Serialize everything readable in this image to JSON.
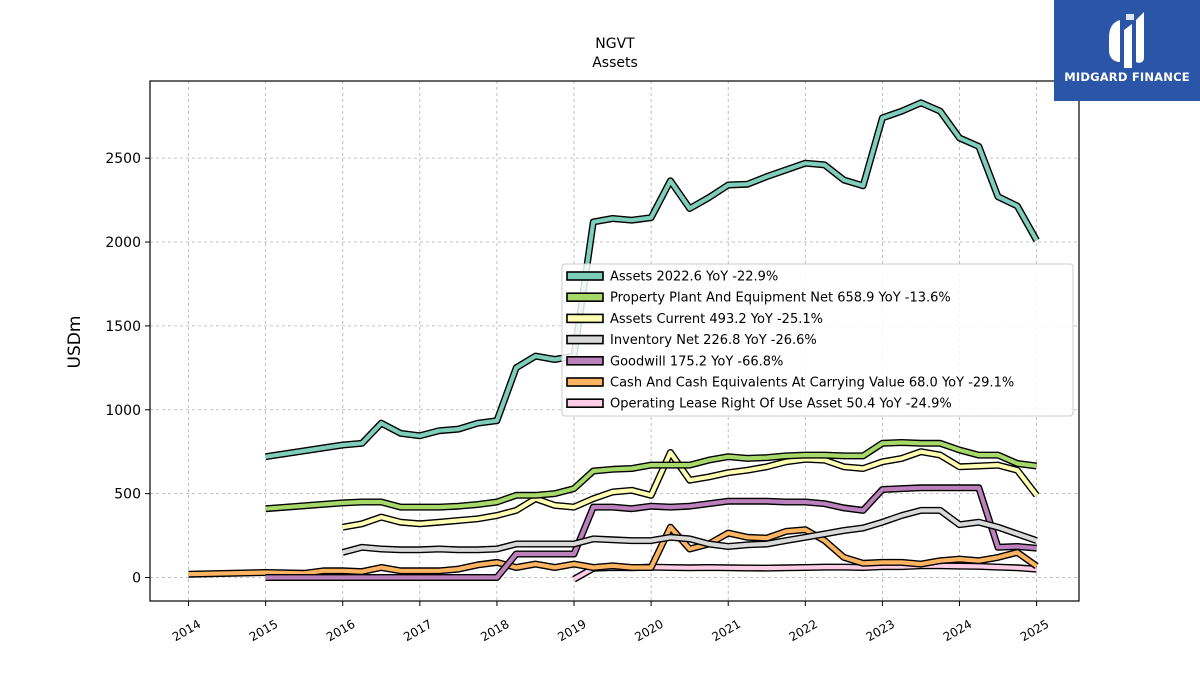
{
  "brand": {
    "name": "MIDGARD FINANCE",
    "bg_color": "#2b56a8"
  },
  "chart_data": {
    "type": "line",
    "title": "NGVT",
    "subtitle": "Assets",
    "ylabel": "USDm",
    "xlabel": "",
    "xlim": [
      2013.5,
      2025.55
    ],
    "ylim": [
      -140,
      2960
    ],
    "yticks": [
      0,
      500,
      1000,
      1500,
      2000,
      2500
    ],
    "xticks": [
      "2014",
      "2015",
      "2016",
      "2017",
      "2018",
      "2019",
      "2020",
      "2021",
      "2022",
      "2023",
      "2024",
      "2025"
    ],
    "grid": true,
    "legend_position": "center-right",
    "series": [
      {
        "name": "Assets",
        "legend": "Assets  2022.6 YoY -22.9%",
        "color": "#7fcdbb",
        "x": [
          2015.0,
          2016.0,
          2016.25,
          2016.5,
          2016.75,
          2017.0,
          2017.25,
          2017.5,
          2017.75,
          2018.0,
          2018.25,
          2018.5,
          2018.75,
          2019.0,
          2019.25,
          2019.5,
          2019.75,
          2020.0,
          2020.25,
          2020.5,
          2020.75,
          2021.0,
          2021.25,
          2021.5,
          2021.75,
          2022.0,
          2022.25,
          2022.5,
          2022.75,
          2023.0,
          2023.25,
          2023.5,
          2023.75,
          2024.0,
          2024.25,
          2024.5,
          2024.75,
          2025.0
        ],
        "y": [
          720,
          790,
          800,
          920,
          860,
          845,
          875,
          885,
          920,
          935,
          1250,
          1320,
          1300,
          1320,
          2120,
          2140,
          2130,
          2145,
          2365,
          2200,
          2265,
          2340,
          2345,
          2390,
          2430,
          2470,
          2460,
          2370,
          2335,
          2740,
          2780,
          2830,
          2780,
          2620,
          2570,
          2270,
          2215,
          2010
        ]
      },
      {
        "name": "Property Plant And Equipment Net",
        "legend": "Property Plant And Equipment Net  658.9 YoY -13.6%",
        "color": "#a6d96a",
        "x": [
          2015.0,
          2016.0,
          2016.25,
          2016.5,
          2016.75,
          2017.0,
          2017.25,
          2017.5,
          2017.75,
          2018.0,
          2018.25,
          2018.5,
          2018.75,
          2019.0,
          2019.25,
          2019.5,
          2019.75,
          2020.0,
          2020.25,
          2020.5,
          2020.75,
          2021.0,
          2021.25,
          2021.5,
          2021.75,
          2022.0,
          2022.25,
          2022.5,
          2022.75,
          2023.0,
          2023.25,
          2023.5,
          2023.75,
          2024.0,
          2024.25,
          2024.5,
          2024.75,
          2025.0
        ],
        "y": [
          410,
          445,
          450,
          450,
          420,
          420,
          420,
          425,
          435,
          450,
          490,
          490,
          500,
          530,
          635,
          645,
          650,
          670,
          670,
          670,
          700,
          720,
          710,
          715,
          725,
          730,
          730,
          725,
          725,
          800,
          805,
          800,
          800,
          760,
          730,
          730,
          680,
          665
        ]
      },
      {
        "name": "Assets Current",
        "legend": "Assets Current  493.2 YoY -25.1%",
        "color": "#ffffb3",
        "x": [
          2016.0,
          2016.25,
          2016.5,
          2016.75,
          2017.0,
          2017.25,
          2017.5,
          2017.75,
          2018.0,
          2018.25,
          2018.5,
          2018.75,
          2019.0,
          2019.25,
          2019.5,
          2019.75,
          2020.0,
          2020.25,
          2020.5,
          2020.75,
          2021.0,
          2021.25,
          2021.5,
          2021.75,
          2022.0,
          2022.25,
          2022.5,
          2022.75,
          2023.0,
          2023.25,
          2023.5,
          2023.75,
          2024.0,
          2024.25,
          2024.5,
          2024.75,
          2025.0
        ],
        "y": [
          300,
          320,
          360,
          330,
          320,
          330,
          340,
          350,
          370,
          400,
          470,
          430,
          420,
          470,
          510,
          520,
          490,
          745,
          580,
          600,
          625,
          640,
          660,
          690,
          705,
          700,
          660,
          650,
          690,
          710,
          750,
          730,
          660,
          665,
          670,
          640,
          490
        ]
      },
      {
        "name": "Inventory Net",
        "legend": "Inventory Net  226.8 YoY -26.6%",
        "color": "#d9d9d9",
        "x": [
          2016.0,
          2016.25,
          2016.5,
          2016.75,
          2017.0,
          2017.25,
          2017.5,
          2017.75,
          2018.0,
          2018.25,
          2018.5,
          2018.75,
          2019.0,
          2019.25,
          2019.5,
          2019.75,
          2020.0,
          2020.25,
          2020.5,
          2020.75,
          2021.0,
          2021.25,
          2021.5,
          2021.75,
          2022.0,
          2022.25,
          2022.5,
          2022.75,
          2023.0,
          2023.25,
          2023.5,
          2023.75,
          2024.0,
          2024.25,
          2024.5,
          2024.75,
          2025.0
        ],
        "y": [
          150,
          180,
          170,
          165,
          165,
          170,
          165,
          165,
          170,
          200,
          200,
          200,
          200,
          230,
          225,
          220,
          220,
          240,
          230,
          200,
          185,
          195,
          200,
          220,
          240,
          260,
          280,
          295,
          330,
          370,
          400,
          400,
          315,
          330,
          300,
          260,
          220
        ]
      },
      {
        "name": "Goodwill",
        "legend": "Goodwill  175.2 YoY -66.8%",
        "color": "#bc80bd",
        "x": [
          2015.0,
          2016.0,
          2016.25,
          2016.5,
          2016.75,
          2017.0,
          2017.25,
          2017.5,
          2017.75,
          2018.0,
          2018.25,
          2018.5,
          2018.75,
          2019.0,
          2019.25,
          2019.5,
          2019.75,
          2020.0,
          2020.25,
          2020.5,
          2020.75,
          2021.0,
          2021.25,
          2021.5,
          2021.75,
          2022.0,
          2022.25,
          2022.5,
          2022.75,
          2023.0,
          2023.25,
          2023.5,
          2023.75,
          2024.0,
          2024.25,
          2024.5,
          2024.75,
          2025.0
        ],
        "y": [
          0,
          0,
          0,
          0,
          0,
          0,
          0,
          0,
          0,
          0,
          140,
          140,
          140,
          140,
          420,
          420,
          410,
          425,
          420,
          425,
          440,
          455,
          455,
          455,
          450,
          450,
          440,
          415,
          400,
          525,
          530,
          535,
          535,
          535,
          535,
          180,
          185,
          175
        ]
      },
      {
        "name": "Cash And Cash Equivalents At Carrying Value",
        "legend": "Cash And Cash Equivalents At Carrying Value  68.0 YoY -29.1%",
        "color": "#fdb462",
        "x": [
          2014.0,
          2015.0,
          2015.5,
          2015.75,
          2016.0,
          2016.25,
          2016.5,
          2016.75,
          2017.0,
          2017.25,
          2017.5,
          2017.75,
          2018.0,
          2018.25,
          2018.5,
          2018.75,
          2019.0,
          2019.25,
          2019.5,
          2019.75,
          2020.0,
          2020.25,
          2020.5,
          2020.75,
          2021.0,
          2021.25,
          2021.5,
          2021.75,
          2022.0,
          2022.25,
          2022.5,
          2022.75,
          2023.0,
          2023.25,
          2023.5,
          2023.75,
          2024.0,
          2024.25,
          2024.5,
          2024.75,
          2025.0
        ],
        "y": [
          20,
          30,
          25,
          40,
          40,
          35,
          60,
          40,
          40,
          40,
          50,
          75,
          90,
          60,
          80,
          60,
          80,
          60,
          70,
          60,
          60,
          300,
          170,
          200,
          265,
          240,
          235,
          275,
          285,
          220,
          120,
          85,
          90,
          90,
          80,
          100,
          110,
          100,
          120,
          150,
          68
        ]
      },
      {
        "name": "Operating Lease Right Of Use Asset",
        "legend": "Operating Lease Right Of Use Asset  50.4 YoY -24.9%",
        "color": "#fccde5",
        "x": [
          2019.0,
          2019.25,
          2019.5,
          2019.75,
          2020.0,
          2020.25,
          2020.5,
          2020.75,
          2021.0,
          2021.25,
          2021.5,
          2021.75,
          2022.0,
          2022.25,
          2022.5,
          2022.75,
          2023.0,
          2023.25,
          2023.5,
          2023.75,
          2024.0,
          2024.25,
          2024.5,
          2024.75,
          2025.0
        ],
        "y": [
          -10,
          55,
          60,
          58,
          62,
          60,
          58,
          60,
          58,
          57,
          56,
          58,
          60,
          62,
          62,
          60,
          65,
          65,
          70,
          70,
          68,
          66,
          62,
          58,
          50
        ]
      }
    ]
  }
}
